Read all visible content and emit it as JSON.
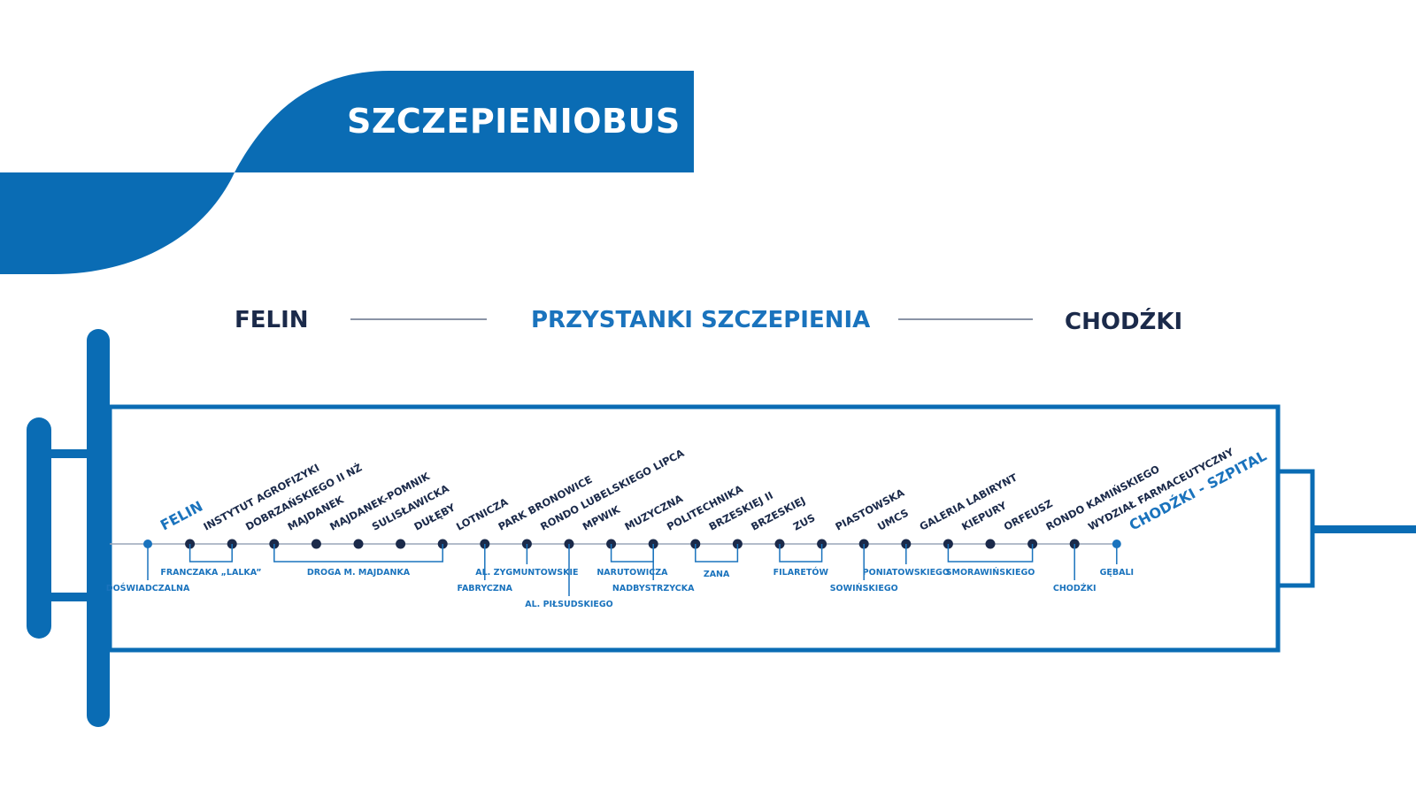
{
  "colors": {
    "primary": "#0a6cb4",
    "line": "#1a73bd",
    "navy": "#1b2a4a",
    "rule": "#8a94a6"
  },
  "title": "SZCZEPIENIOBUS",
  "header": {
    "left": "FELIN",
    "center": "PRZYSTANKI SZCZEPIENIA",
    "right": "CHODŹKI"
  },
  "stops": [
    "FELIN",
    "INSTYTUT AGROFIZYKI",
    "DOBRZAŃSKIEGO II NŻ",
    "MAJDANEK",
    "MAJDANEK-POMNIK",
    "SULISŁAWICKA",
    "DUŁĘBY",
    "LOTNICZA",
    "PARK BRONOWICE",
    "RONDO LUBELSKIEGO LIPCA",
    "MPWIK",
    "MUZYCZNA",
    "POLITECHNIKA",
    "BRZESKIEJ II",
    "BRZESKIEJ",
    "ZUS",
    "PIASTOWSKA",
    "UMCS",
    "GALERIA LABIRYNT",
    "KIEPURY",
    "ORFEUSZ",
    "RONDO KAMIŃSKIEGO",
    "WYDZIAŁ FARMACEUTYCZNY",
    "CHODŹKI - SZPITAL"
  ],
  "streets": [
    "DOŚWIADCZALNA",
    "FRANCZAKA „LALKA”",
    "DROGA M. MAJDANKA",
    "FABRYCZNA",
    "AL. ZYGMUNTOWSKIE",
    "AL. PIŁSUDSKIEGO",
    "NARUTOWICZA",
    "NADBYSTRZYCKA",
    "ZANA",
    "FILARETÓW",
    "SOWIŃSKIEGO",
    "PONIATOWSKIEGO",
    "SMORAWIŃSKIEGO",
    "CHODŹKI",
    "GĘBALI"
  ]
}
